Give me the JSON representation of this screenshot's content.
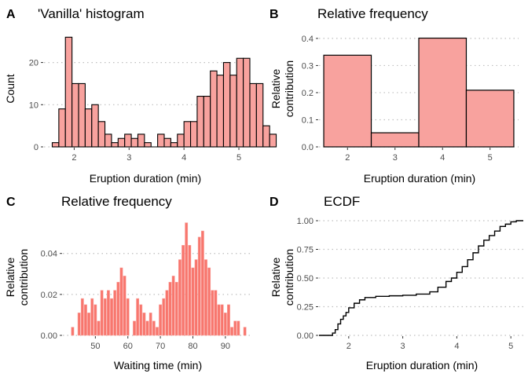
{
  "chart_data": [
    {
      "tag": "A",
      "type": "bar",
      "title": "'Vanilla' histogram",
      "xlabel": "Eruption duration (min)",
      "ylabel": "Count",
      "xlim": [
        1.45,
        5.2
      ],
      "ylim": [
        0,
        27
      ],
      "xticks": [
        2,
        3,
        4,
        5
      ],
      "yticks": [
        0,
        10,
        20
      ],
      "grid": "horizontal dotted",
      "bin_width": 0.12,
      "bin_start": 1.6,
      "values": [
        1,
        9,
        26,
        15,
        15,
        9,
        10,
        6,
        3,
        1,
        2,
        3,
        2,
        3,
        1,
        0,
        3,
        2,
        1,
        3,
        6,
        6,
        12,
        12,
        18,
        17,
        20,
        17,
        21,
        21,
        15,
        15,
        5,
        3
      ],
      "fill": "#f8a29e",
      "stroke": "#000000"
    },
    {
      "tag": "B",
      "type": "bar",
      "title": "Relative frequency",
      "xlabel": "Eruption duration (min)",
      "ylabel": [
        "Relative",
        "contribution"
      ],
      "xlim": [
        1.4,
        5.6
      ],
      "ylim": [
        0,
        0.42
      ],
      "xticks": [
        2,
        3,
        4,
        5
      ],
      "yticks": [
        0.0,
        0.1,
        0.2,
        0.3,
        0.4
      ],
      "ytick_labels": [
        "0.0",
        "0.1",
        "0.2",
        "0.3",
        "0.4"
      ],
      "grid": "horizontal dotted",
      "bins": [
        [
          1.5,
          2.5
        ],
        [
          2.5,
          3.5
        ],
        [
          3.5,
          4.5
        ],
        [
          4.5,
          5.5
        ]
      ],
      "values": [
        0.338,
        0.052,
        0.401,
        0.209
      ],
      "fill": "#f8a29e",
      "stroke": "#000000"
    },
    {
      "tag": "C",
      "type": "bar",
      "title": "Relative frequency",
      "xlabel": "Waiting time (min)",
      "ylabel": [
        "Relative",
        "contribution"
      ],
      "xlim": [
        40,
        98.5
      ],
      "ylim": [
        0,
        0.056
      ],
      "xticks": [
        50,
        60,
        70,
        80,
        90
      ],
      "yticks": [
        0.0,
        0.02,
        0.04
      ],
      "ytick_labels": [
        "0.00",
        "0.02",
        "0.04"
      ],
      "grid": "horizontal dotted",
      "x": [
        43,
        45,
        46,
        47,
        48,
        49,
        50,
        51,
        52,
        53,
        54,
        55,
        56,
        57,
        58,
        59,
        60,
        62,
        63,
        64,
        65,
        66,
        67,
        68,
        69,
        70,
        71,
        72,
        73,
        74,
        75,
        76,
        77,
        78,
        79,
        80,
        81,
        82,
        83,
        84,
        85,
        86,
        87,
        88,
        89,
        90,
        91,
        92,
        93,
        94,
        96
      ],
      "values": [
        0.004,
        0.011,
        0.018,
        0.015,
        0.011,
        0.018,
        0.015,
        0.007,
        0.022,
        0.018,
        0.022,
        0.018,
        0.022,
        0.026,
        0.033,
        0.029,
        0.018,
        0.007,
        0.018,
        0.015,
        0.011,
        0.007,
        0.011,
        0.007,
        0.004,
        0.015,
        0.018,
        0.022,
        0.026,
        0.029,
        0.026,
        0.037,
        0.044,
        0.055,
        0.044,
        0.033,
        0.037,
        0.048,
        0.051,
        0.037,
        0.033,
        0.022,
        0.022,
        0.015,
        0.015,
        0.011,
        0.015,
        0.004,
        0.007,
        0.007,
        0.004
      ],
      "fill": "#f8766d",
      "stroke": "#f8a29e"
    },
    {
      "tag": "D",
      "type": "line",
      "title": "ECDF",
      "xlabel": "Eruption duration (min)",
      "ylabel": [
        "Relative",
        "contribution"
      ],
      "xlim": [
        1.45,
        5.23
      ],
      "ylim": [
        0,
        1.0
      ],
      "xticks": [
        2,
        3,
        4,
        5
      ],
      "yticks": [
        0,
        0.25,
        0.5,
        0.75,
        1.0
      ],
      "ytick_labels": [
        "0.00",
        "0.25",
        "0.50",
        "0.75",
        "1.00"
      ],
      "grid": "horizontal dotted",
      "x": [
        1.6,
        1.7,
        1.75,
        1.8,
        1.85,
        1.9,
        1.95,
        2.0,
        2.1,
        2.2,
        2.3,
        2.5,
        2.75,
        3.0,
        3.25,
        3.5,
        3.65,
        3.8,
        3.9,
        4.0,
        4.1,
        4.2,
        4.3,
        4.4,
        4.5,
        4.6,
        4.7,
        4.8,
        4.9,
        5.0,
        5.1
      ],
      "values": [
        0.0,
        0.02,
        0.05,
        0.1,
        0.14,
        0.17,
        0.2,
        0.24,
        0.28,
        0.31,
        0.33,
        0.34,
        0.345,
        0.35,
        0.36,
        0.38,
        0.42,
        0.47,
        0.5,
        0.55,
        0.6,
        0.66,
        0.72,
        0.78,
        0.83,
        0.87,
        0.91,
        0.95,
        0.97,
        0.99,
        1.0
      ],
      "stroke": "#000000"
    }
  ]
}
